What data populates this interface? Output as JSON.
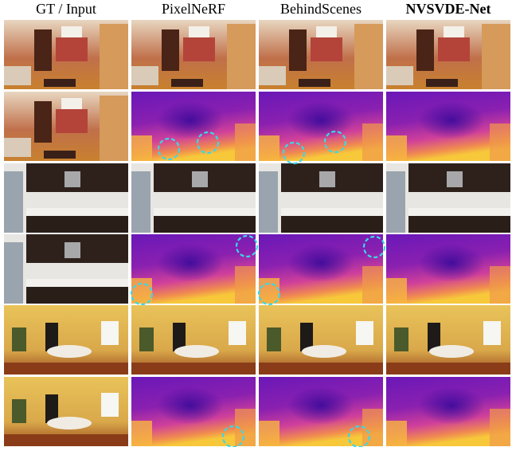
{
  "columns": [
    "GT / Input",
    "PixelNeRF",
    "BehindScenes",
    "NVSVDE-Net"
  ]
}
